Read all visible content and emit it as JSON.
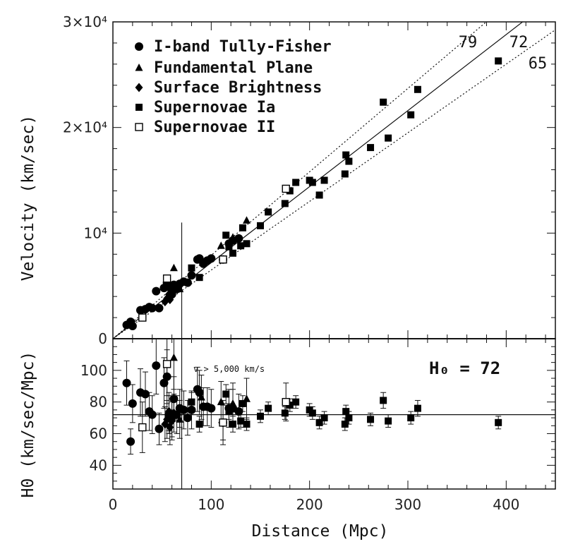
{
  "chart_data": [
    {
      "type": "scatter",
      "panel": "top",
      "xlabel": "Distance (Mpc)",
      "ylabel": "Velocity (km/sec)",
      "xlim": [
        0,
        450
      ],
      "ylim": [
        0,
        30000
      ],
      "xticks": [
        0,
        100,
        200,
        300,
        400
      ],
      "xtick_labels": [
        "0",
        "100",
        "200",
        "300",
        "400"
      ],
      "yticks": [
        0,
        10000,
        20000,
        30000
      ],
      "ytick_labels": [
        "0",
        "10⁴",
        "2×10⁴",
        "3×10⁴"
      ],
      "reference_lines": [
        {
          "label": "79",
          "slope": 79,
          "style": "dotted"
        },
        {
          "label": "72",
          "slope": 72,
          "style": "solid"
        },
        {
          "label": "65",
          "slope": 65,
          "style": "dotted"
        }
      ],
      "vertical_marker_x": 70,
      "series": [
        {
          "name": "I-band Tully-Fisher",
          "marker": "circle",
          "x": [
            14,
            18,
            20,
            28,
            33,
            37,
            40,
            44,
            47,
            52,
            55,
            57,
            60,
            62,
            65,
            68,
            72,
            76,
            80,
            86,
            88,
            92,
            96,
            100,
            112,
            118,
            122,
            128
          ],
          "y": [
            1300,
            1600,
            1200,
            2700,
            2800,
            3000,
            2900,
            4500,
            2900,
            4800,
            5300,
            4900,
            4200,
            5100,
            4700,
            5200,
            5400,
            5300,
            6000,
            7500,
            7600,
            7100,
            7400,
            7600,
            7500,
            9000,
            9300,
            9500
          ]
        },
        {
          "name": "Fundamental Plane",
          "marker": "triangle",
          "x": [
            62,
            68,
            90,
            110,
            122,
            136
          ],
          "y": [
            6700,
            4700,
            7500,
            8800,
            9600,
            11200
          ]
        },
        {
          "name": "Surface Brightness",
          "marker": "diamond",
          "x": [
            53,
            55,
            57,
            58,
            60,
            62
          ],
          "y": [
            3500,
            3800,
            4200,
            3700,
            4100,
            4500
          ]
        },
        {
          "name": "Supernovae Ia",
          "marker": "filled-square",
          "x": [
            80,
            88,
            115,
            118,
            122,
            130,
            132,
            136,
            150,
            158,
            175,
            180,
            186,
            200,
            203,
            210,
            215,
            236,
            237,
            240,
            262,
            275,
            280,
            303,
            310,
            392
          ],
          "y": [
            6700,
            5800,
            9800,
            8700,
            8100,
            8800,
            10500,
            9000,
            10700,
            12000,
            12800,
            14000,
            14800,
            15000,
            14800,
            13600,
            15000,
            15600,
            17400,
            16800,
            18100,
            22400,
            19000,
            21200,
            23600,
            26300
          ]
        },
        {
          "name": "Supernovae II",
          "marker": "open-square",
          "x": [
            30,
            55,
            112,
            176
          ],
          "y": [
            2000,
            5700,
            7500,
            14200
          ]
        }
      ],
      "legend": [
        "I-band Tully-Fisher",
        "Fundamental Plane",
        "Surface Brightness",
        "Supernovae Ia",
        "Supernovae II"
      ],
      "legend_position": "top-left",
      "line_labels": [
        "79",
        "72",
        "65"
      ]
    },
    {
      "type": "scatter",
      "panel": "bottom",
      "xlabel": "Distance (Mpc)",
      "ylabel": "H0 (km/sec/Mpc)",
      "xlim": [
        0,
        450
      ],
      "ylim": [
        25,
        120
      ],
      "yticks": [
        40,
        60,
        80,
        100
      ],
      "ytick_labels": [
        "40",
        "60",
        "80",
        "100"
      ],
      "reference_line_y": 72,
      "vertical_marker_x": 70,
      "annotation": "v > 5,000 km/s",
      "h0_label": "H₀ = 72",
      "series": [
        {
          "name": "I-band Tully-Fisher",
          "marker": "circle",
          "x": [
            14,
            18,
            20,
            28,
            33,
            37,
            40,
            44,
            47,
            52,
            55,
            57,
            60,
            62,
            65,
            68,
            72,
            76,
            80,
            86,
            88,
            92,
            96,
            100,
            112,
            118,
            122,
            128
          ],
          "y": [
            92,
            55,
            79,
            86,
            85,
            74,
            72,
            103,
            63,
            92,
            96,
            72,
            70,
            82,
            72,
            76,
            75,
            70,
            75,
            88,
            86,
            77,
            77,
            76,
            67,
            76,
            76,
            74
          ],
          "err": [
            14,
            8,
            12,
            15,
            14,
            12,
            12,
            18,
            10,
            16,
            17,
            12,
            12,
            14,
            12,
            12,
            12,
            11,
            12,
            14,
            14,
            12,
            12,
            12,
            11,
            12,
            12,
            11
          ]
        },
        {
          "name": "Fundamental Plane",
          "marker": "triangle",
          "x": [
            62,
            68,
            90,
            110,
            122,
            136
          ],
          "y": [
            108,
            69,
            83,
            80,
            79,
            82
          ],
          "err": [
            20,
            12,
            14,
            13,
            13,
            13
          ]
        },
        {
          "name": "Surface Brightness",
          "marker": "diamond",
          "x": [
            53,
            55,
            57,
            58,
            60,
            62
          ],
          "y": [
            66,
            69,
            74,
            64,
            68,
            73
          ],
          "err": [
            11,
            12,
            12,
            11,
            12,
            12
          ]
        },
        {
          "name": "Supernovae Ia",
          "marker": "filled-square",
          "x": [
            80,
            88,
            115,
            118,
            122,
            130,
            132,
            136,
            150,
            158,
            175,
            180,
            186,
            200,
            203,
            210,
            215,
            236,
            237,
            240,
            262,
            275,
            280,
            303,
            310,
            392
          ],
          "y": [
            80,
            66,
            85,
            74,
            66,
            68,
            79,
            66,
            71,
            76,
            73,
            78,
            80,
            75,
            73,
            67,
            70,
            66,
            74,
            70,
            69,
            81,
            68,
            70,
            76,
            67
          ],
          "err": [
            6,
            5,
            6,
            5,
            5,
            4,
            5,
            4,
            4,
            4,
            4,
            4,
            4,
            4,
            4,
            4,
            4,
            4,
            4,
            4,
            4,
            5,
            4,
            4,
            5,
            4
          ]
        },
        {
          "name": "Supernovae II",
          "marker": "open-square",
          "x": [
            30,
            55,
            112,
            176
          ],
          "y": [
            64,
            104,
            67,
            80
          ],
          "err": [
            16,
            20,
            14,
            12
          ]
        }
      ]
    }
  ]
}
